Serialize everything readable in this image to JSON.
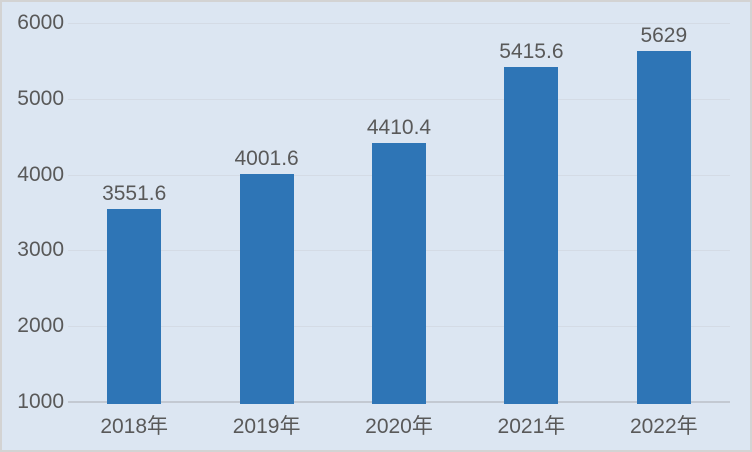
{
  "chart_data": {
    "type": "bar",
    "title": "",
    "xlabel": "",
    "ylabel": "",
    "categories": [
      "2018年",
      "2019年",
      "2020年",
      "2021年",
      "2022年"
    ],
    "values": [
      3551.6,
      4001.6,
      4410.4,
      5415.6,
      5629
    ],
    "labels": [
      "3551.6",
      "4001.6",
      "4410.4",
      "5415.6",
      "5629"
    ],
    "ylim": [
      1000,
      6000
    ],
    "yticks": [
      1000,
      2000,
      3000,
      4000,
      5000,
      6000
    ],
    "grid": true,
    "legend": false,
    "colors": {
      "bar": "#2e75b6",
      "background": "#dce6f2",
      "gridline": "#d4dbe5",
      "axis_line": "#c3c9d2",
      "text": "#595959",
      "border": "#d3d3d3"
    }
  }
}
